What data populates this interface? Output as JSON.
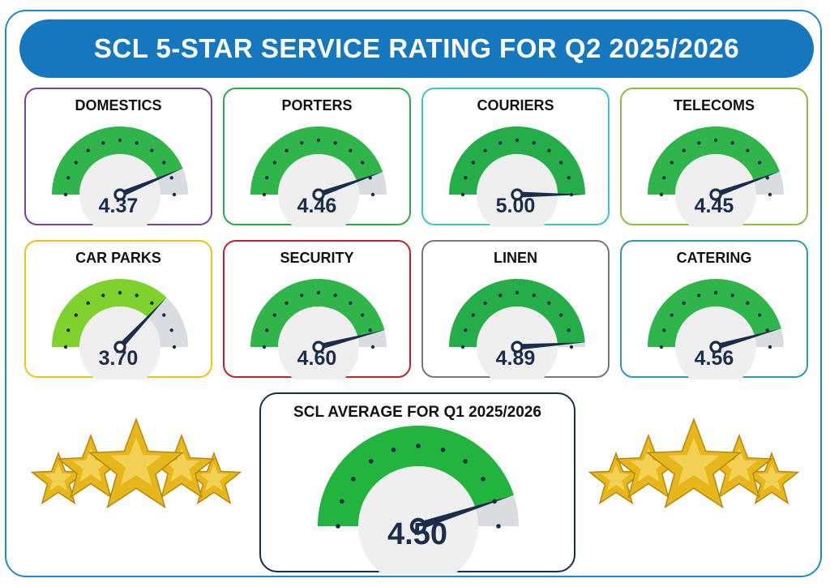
{
  "header": {
    "title": "SCL 5-STAR SERVICE RATING FOR Q2 2025/2026"
  },
  "gauge_scale": {
    "min": 0,
    "max": 5
  },
  "colors": {
    "banner": "#1577bd",
    "frame": "#1f89c6",
    "value_text": "#1a2d4a",
    "needle": "#1a2d4a",
    "track_remaining": "#d9dde1",
    "gauge_inner": "#efefef",
    "star_gold": "#e6b71a"
  },
  "chart_data": [
    {
      "type": "gauge",
      "title": "DOMESTICS",
      "value": 4.37,
      "value_label": "4.37",
      "min": 0,
      "max": 5,
      "border_color": "#7b3fa0",
      "fill_color": "#2fb54a"
    },
    {
      "type": "gauge",
      "title": "PORTERS",
      "value": 4.46,
      "value_label": "4.46",
      "min": 0,
      "max": 5,
      "border_color": "#2eaa4e",
      "fill_color": "#2fb54a"
    },
    {
      "type": "gauge",
      "title": "COURIERS",
      "value": 5.0,
      "value_label": "5.00",
      "min": 0,
      "max": 5,
      "border_color": "#3cc3d3",
      "fill_color": "#24ad48"
    },
    {
      "type": "gauge",
      "title": "TELECOMS",
      "value": 4.45,
      "value_label": "4.45",
      "min": 0,
      "max": 5,
      "border_color": "#8fbc3f",
      "fill_color": "#2fb54a"
    },
    {
      "type": "gauge",
      "title": "CAR PARKS",
      "value": 3.7,
      "value_label": "3.70",
      "min": 0,
      "max": 5,
      "border_color": "#ecc31b",
      "fill_color": "#7fd12e"
    },
    {
      "type": "gauge",
      "title": "SECURITY",
      "value": 4.6,
      "value_label": "4.60",
      "min": 0,
      "max": 5,
      "border_color": "#c2202a",
      "fill_color": "#2fb54a"
    },
    {
      "type": "gauge",
      "title": "LINEN",
      "value": 4.89,
      "value_label": "4.89",
      "min": 0,
      "max": 5,
      "border_color": "#777777",
      "fill_color": "#24ad48"
    },
    {
      "type": "gauge",
      "title": "CATERING",
      "value": 4.56,
      "value_label": "4.56",
      "min": 0,
      "max": 5,
      "border_color": "#2c9da6",
      "fill_color": "#2fb54a"
    },
    {
      "type": "gauge",
      "title": "SCL AVERAGE FOR Q1 2025/2026",
      "value": 4.5,
      "value_label": "4.50",
      "min": 0,
      "max": 5,
      "border_color": "#1a2d4a",
      "fill_color": "#22b43f"
    }
  ],
  "decorations": {
    "left": "five-gold-stars",
    "right": "five-gold-stars"
  }
}
